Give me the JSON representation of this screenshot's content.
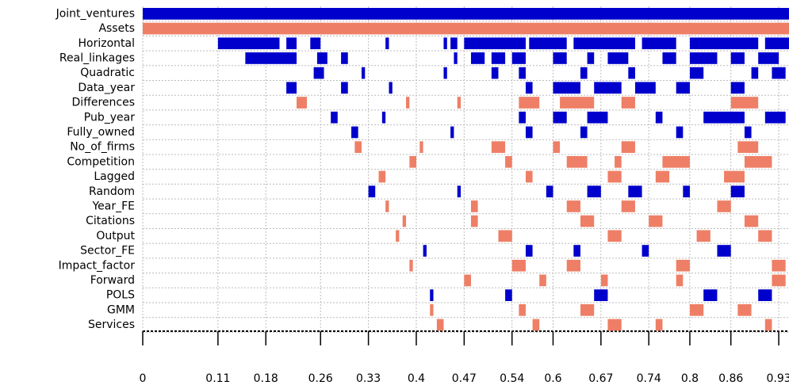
{
  "chart_data": {
    "type": "model-inclusion",
    "xlim": [
      0,
      0.945
    ],
    "xticks": [
      0,
      0.11,
      0.18,
      0.26,
      0.33,
      0.4,
      0.47,
      0.54,
      0.6,
      0.67,
      0.74,
      0.8,
      0.86,
      0.93
    ],
    "grid": true,
    "rows": [
      {
        "name": "Joint_ventures",
        "color": "#0000cc",
        "segments": [
          [
            0,
            0.945
          ]
        ]
      },
      {
        "name": "Assets",
        "color": "#ee7f66",
        "segments": [
          [
            0,
            0.945
          ]
        ]
      },
      {
        "name": "Horizontal",
        "color": "#0000cc",
        "segments": [
          [
            0.11,
            0.2
          ],
          [
            0.21,
            0.225
          ],
          [
            0.245,
            0.26
          ],
          [
            0.355,
            0.36
          ],
          [
            0.44,
            0.445
          ],
          [
            0.45,
            0.46
          ],
          [
            0.47,
            0.56
          ],
          [
            0.565,
            0.62
          ],
          [
            0.63,
            0.72
          ],
          [
            0.73,
            0.78
          ],
          [
            0.8,
            0.9
          ],
          [
            0.91,
            0.945
          ]
        ]
      },
      {
        "name": "Real_linkages",
        "color": "#0000cc",
        "segments": [
          [
            0.15,
            0.225
          ],
          [
            0.255,
            0.27
          ],
          [
            0.29,
            0.3
          ],
          [
            0.455,
            0.46
          ],
          [
            0.48,
            0.5
          ],
          [
            0.51,
            0.53
          ],
          [
            0.54,
            0.56
          ],
          [
            0.6,
            0.62
          ],
          [
            0.65,
            0.66
          ],
          [
            0.68,
            0.71
          ],
          [
            0.76,
            0.78
          ],
          [
            0.8,
            0.84
          ],
          [
            0.86,
            0.88
          ],
          [
            0.9,
            0.93
          ]
        ]
      },
      {
        "name": "Quadratic",
        "color": "#0000cc",
        "segments": [
          [
            0.25,
            0.265
          ],
          [
            0.32,
            0.325
          ],
          [
            0.44,
            0.445
          ],
          [
            0.51,
            0.52
          ],
          [
            0.55,
            0.56
          ],
          [
            0.64,
            0.65
          ],
          [
            0.71,
            0.72
          ],
          [
            0.8,
            0.82
          ],
          [
            0.89,
            0.9
          ],
          [
            0.92,
            0.94
          ]
        ]
      },
      {
        "name": "Data_year",
        "color": "#0000cc",
        "segments": [
          [
            0.21,
            0.225
          ],
          [
            0.29,
            0.3
          ],
          [
            0.36,
            0.365
          ],
          [
            0.56,
            0.57
          ],
          [
            0.6,
            0.64
          ],
          [
            0.66,
            0.7
          ],
          [
            0.72,
            0.75
          ],
          [
            0.78,
            0.8
          ],
          [
            0.86,
            0.88
          ]
        ]
      },
      {
        "name": "Differences",
        "color": "#ee7f66",
        "segments": [
          [
            0.225,
            0.24
          ],
          [
            0.385,
            0.39
          ],
          [
            0.46,
            0.465
          ],
          [
            0.55,
            0.58
          ],
          [
            0.61,
            0.66
          ],
          [
            0.7,
            0.72
          ],
          [
            0.86,
            0.9
          ]
        ]
      },
      {
        "name": "Pub_year",
        "color": "#0000cc",
        "segments": [
          [
            0.275,
            0.285
          ],
          [
            0.35,
            0.355
          ],
          [
            0.55,
            0.56
          ],
          [
            0.6,
            0.62
          ],
          [
            0.65,
            0.68
          ],
          [
            0.75,
            0.76
          ],
          [
            0.82,
            0.88
          ],
          [
            0.91,
            0.94
          ]
        ]
      },
      {
        "name": "Fully_owned",
        "color": "#0000cc",
        "segments": [
          [
            0.305,
            0.315
          ],
          [
            0.45,
            0.455
          ],
          [
            0.56,
            0.57
          ],
          [
            0.64,
            0.65
          ],
          [
            0.78,
            0.79
          ],
          [
            0.88,
            0.89
          ]
        ]
      },
      {
        "name": "No_of_firms",
        "color": "#ee7f66",
        "segments": [
          [
            0.31,
            0.32
          ],
          [
            0.405,
            0.41
          ],
          [
            0.51,
            0.53
          ],
          [
            0.6,
            0.61
          ],
          [
            0.7,
            0.72
          ],
          [
            0.87,
            0.9
          ]
        ]
      },
      {
        "name": "Competition",
        "color": "#ee7f66",
        "segments": [
          [
            0.39,
            0.4
          ],
          [
            0.53,
            0.54
          ],
          [
            0.62,
            0.65
          ],
          [
            0.69,
            0.7
          ],
          [
            0.76,
            0.8
          ],
          [
            0.88,
            0.92
          ]
        ]
      },
      {
        "name": "Lagged",
        "color": "#ee7f66",
        "segments": [
          [
            0.345,
            0.355
          ],
          [
            0.56,
            0.57
          ],
          [
            0.68,
            0.7
          ],
          [
            0.75,
            0.77
          ],
          [
            0.85,
            0.88
          ]
        ]
      },
      {
        "name": "Random",
        "color": "#0000cc",
        "segments": [
          [
            0.33,
            0.34
          ],
          [
            0.46,
            0.465
          ],
          [
            0.59,
            0.6
          ],
          [
            0.65,
            0.67
          ],
          [
            0.71,
            0.73
          ],
          [
            0.79,
            0.8
          ],
          [
            0.86,
            0.88
          ]
        ]
      },
      {
        "name": "Year_FE",
        "color": "#ee7f66",
        "segments": [
          [
            0.355,
            0.36
          ],
          [
            0.48,
            0.49
          ],
          [
            0.62,
            0.64
          ],
          [
            0.7,
            0.72
          ],
          [
            0.84,
            0.86
          ]
        ]
      },
      {
        "name": "Citations",
        "color": "#ee7f66",
        "segments": [
          [
            0.38,
            0.385
          ],
          [
            0.48,
            0.49
          ],
          [
            0.64,
            0.66
          ],
          [
            0.74,
            0.76
          ],
          [
            0.88,
            0.9
          ]
        ]
      },
      {
        "name": "Output",
        "color": "#ee7f66",
        "segments": [
          [
            0.37,
            0.375
          ],
          [
            0.52,
            0.54
          ],
          [
            0.68,
            0.7
          ],
          [
            0.81,
            0.83
          ],
          [
            0.9,
            0.92
          ]
        ]
      },
      {
        "name": "Sector_FE",
        "color": "#0000cc",
        "segments": [
          [
            0.41,
            0.415
          ],
          [
            0.56,
            0.57
          ],
          [
            0.63,
            0.64
          ],
          [
            0.73,
            0.74
          ],
          [
            0.84,
            0.86
          ]
        ]
      },
      {
        "name": "Impact_factor",
        "color": "#ee7f66",
        "segments": [
          [
            0.39,
            0.395
          ],
          [
            0.54,
            0.56
          ],
          [
            0.62,
            0.64
          ],
          [
            0.78,
            0.8
          ],
          [
            0.92,
            0.94
          ]
        ]
      },
      {
        "name": "Forward",
        "color": "#ee7f66",
        "segments": [
          [
            0.47,
            0.48
          ],
          [
            0.58,
            0.59
          ],
          [
            0.67,
            0.68
          ],
          [
            0.78,
            0.79
          ],
          [
            0.92,
            0.94
          ]
        ]
      },
      {
        "name": "POLS",
        "color": "#0000cc",
        "segments": [
          [
            0.42,
            0.425
          ],
          [
            0.53,
            0.54
          ],
          [
            0.66,
            0.68
          ],
          [
            0.82,
            0.84
          ],
          [
            0.9,
            0.92
          ]
        ]
      },
      {
        "name": "GMM",
        "color": "#ee7f66",
        "segments": [
          [
            0.42,
            0.425
          ],
          [
            0.55,
            0.56
          ],
          [
            0.64,
            0.66
          ],
          [
            0.8,
            0.82
          ],
          [
            0.87,
            0.89
          ]
        ]
      },
      {
        "name": "Services",
        "color": "#ee7f66",
        "segments": [
          [
            0.43,
            0.44
          ],
          [
            0.57,
            0.58
          ],
          [
            0.68,
            0.7
          ],
          [
            0.75,
            0.76
          ],
          [
            0.91,
            0.92
          ]
        ]
      }
    ]
  }
}
